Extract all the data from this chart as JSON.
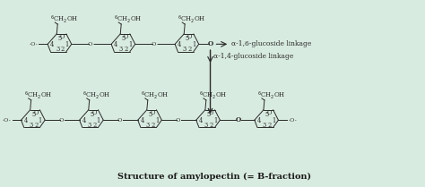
{
  "bg_color": "#d8ebe0",
  "title": "Structure of amylopectin (= B-fraction)",
  "title_fontsize": 7.0,
  "ring_color": "#2a2a2a",
  "text_color": "#1a1a1a",
  "annotation1": "α-1,6-glucoside linkage",
  "annotation2": "α-1,4-glucoside linkage",
  "fig_w": 4.74,
  "fig_h": 2.09,
  "dpi": 100
}
